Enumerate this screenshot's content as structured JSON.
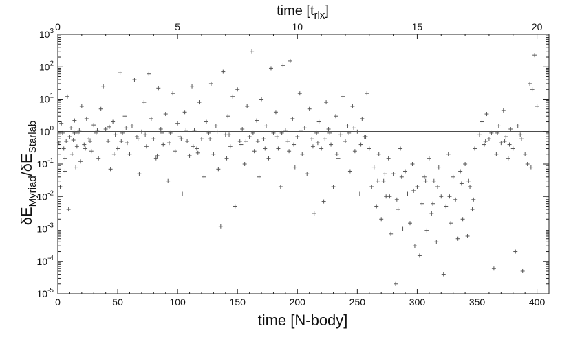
{
  "chart_data": {
    "type": "scatter",
    "xlabel": "time [N-body]",
    "x2label_main": "time [t",
    "x2label_sub": "rlx",
    "x2label_end": "]",
    "ylabel_parts": {
      "main1": "δE",
      "sub1": "Myriad",
      "main2": "/δE",
      "sub2": "Starlab"
    },
    "xlim": [
      0,
      410
    ],
    "x2lim": [
      0,
      20.5
    ],
    "ylim_exp": [
      -5,
      3
    ],
    "log_y": true,
    "grid": false,
    "x_ticks": [
      "0",
      "50",
      "100",
      "150",
      "200",
      "250",
      "300",
      "350",
      "400"
    ],
    "x2_ticks": [
      "0",
      "5",
      "10",
      "15",
      "20"
    ],
    "y_tick_base": "10",
    "y_tick_exponents": [
      "-5",
      "-4",
      "-3",
      "-2",
      "-1",
      "0",
      "1",
      "2",
      "3"
    ],
    "reference_line_y": 1,
    "marker": "+",
    "series": [
      {
        "points": [
          [
            1,
            0.45
          ],
          [
            2,
            0.02
          ],
          [
            3,
            1.8
          ],
          [
            4,
            0.9
          ],
          [
            5,
            0.3
          ],
          [
            6,
            0.06
          ],
          [
            7,
            0.5
          ],
          [
            8,
            12
          ],
          [
            9,
            0.004
          ],
          [
            10,
            0.7
          ],
          [
            11,
            1.3
          ],
          [
            12,
            0.2
          ],
          [
            13,
            0.55
          ],
          [
            14,
            2.2
          ],
          [
            15,
            0.08
          ],
          [
            16,
            0.35
          ],
          [
            17,
            0.9
          ],
          [
            18,
            1.1
          ],
          [
            19,
            0.12
          ],
          [
            20,
            6
          ],
          [
            22,
            0.4
          ],
          [
            24,
            2.5
          ],
          [
            26,
            0.6
          ],
          [
            28,
            0.25
          ],
          [
            30,
            1.6
          ],
          [
            32,
            0.9
          ],
          [
            34,
            0.15
          ],
          [
            36,
            5
          ],
          [
            38,
            25
          ],
          [
            40,
            1.2
          ],
          [
            42,
            0.5
          ],
          [
            44,
            0.07
          ],
          [
            46,
            2
          ],
          [
            48,
            0.8
          ],
          [
            50,
            0.3
          ],
          [
            52,
            65
          ],
          [
            54,
            0.9
          ],
          [
            56,
            3
          ],
          [
            58,
            0.45
          ],
          [
            60,
            0.2
          ],
          [
            62,
            1.5
          ],
          [
            64,
            40
          ],
          [
            66,
            0.7
          ],
          [
            68,
            0.05
          ],
          [
            70,
            1
          ],
          [
            72,
            8
          ],
          [
            74,
            0.35
          ],
          [
            76,
            60
          ],
          [
            78,
            2.5
          ],
          [
            80,
            0.6
          ],
          [
            82,
            0.15
          ],
          [
            84,
            22
          ],
          [
            86,
            1.2
          ],
          [
            88,
            0.4
          ],
          [
            90,
            3.5
          ],
          [
            92,
            0.03
          ],
          [
            94,
            0.9
          ],
          [
            96,
            15
          ],
          [
            98,
            0.25
          ],
          [
            100,
            1.8
          ],
          [
            102,
            0.7
          ],
          [
            104,
            0.012
          ],
          [
            106,
            4
          ],
          [
            108,
            0.5
          ],
          [
            110,
            0.18
          ],
          [
            112,
            25
          ],
          [
            114,
            1.1
          ],
          [
            116,
            0.3
          ],
          [
            118,
            8
          ],
          [
            120,
            0.6
          ],
          [
            122,
            0.04
          ],
          [
            124,
            2
          ],
          [
            126,
            0.9
          ],
          [
            128,
            30
          ],
          [
            130,
            0.2
          ],
          [
            132,
            1.5
          ],
          [
            134,
            0.07
          ],
          [
            136,
            0.0012
          ],
          [
            138,
            70
          ],
          [
            140,
            0.8
          ],
          [
            142,
            3
          ],
          [
            144,
            0.35
          ],
          [
            146,
            12
          ],
          [
            148,
            0.005
          ],
          [
            150,
            20
          ],
          [
            152,
            0.5
          ],
          [
            154,
            1.2
          ],
          [
            156,
            0.1
          ],
          [
            158,
            6
          ],
          [
            160,
            0.7
          ],
          [
            162,
            300
          ],
          [
            164,
            0.25
          ],
          [
            166,
            2.2
          ],
          [
            168,
            0.04
          ],
          [
            170,
            10
          ],
          [
            172,
            0.6
          ],
          [
            174,
            1.5
          ],
          [
            176,
            0.15
          ],
          [
            178,
            90
          ],
          [
            180,
            0.9
          ],
          [
            182,
            4
          ],
          [
            184,
            0.3
          ],
          [
            186,
            0.02
          ],
          [
            188,
            110
          ],
          [
            190,
            1.1
          ],
          [
            192,
            0.5
          ],
          [
            194,
            150
          ],
          [
            196,
            2.5
          ],
          [
            198,
            0.08
          ],
          [
            200,
            0.7
          ],
          [
            202,
            15
          ],
          [
            204,
            0.2
          ],
          [
            206,
            1.3
          ],
          [
            208,
            0.05
          ],
          [
            210,
            5
          ],
          [
            212,
            0.6
          ],
          [
            214,
            0.003
          ],
          [
            216,
            0.9
          ],
          [
            218,
            2
          ],
          [
            220,
            0.3
          ],
          [
            222,
            0.007
          ],
          [
            224,
            8
          ],
          [
            226,
            1.2
          ],
          [
            228,
            0.4
          ],
          [
            230,
            0.02
          ],
          [
            232,
            3
          ],
          [
            234,
            0.15
          ],
          [
            236,
            0.8
          ],
          [
            238,
            12
          ],
          [
            240,
            0.5
          ],
          [
            242,
            1.5
          ],
          [
            244,
            0.06
          ],
          [
            246,
            6
          ],
          [
            248,
            0.25
          ],
          [
            250,
            1
          ],
          [
            252,
            0.012
          ],
          [
            254,
            2.5
          ],
          [
            256,
            0.7
          ],
          [
            258,
            15
          ],
          [
            260,
            0.3
          ],
          [
            262,
            0.02
          ],
          [
            264,
            0.08
          ],
          [
            266,
            0.005
          ],
          [
            268,
            0.2
          ],
          [
            270,
            0.002
          ],
          [
            272,
            0.03
          ],
          [
            274,
            0.01
          ],
          [
            276,
            0.15
          ],
          [
            278,
            0.0007
          ],
          [
            280,
            0.05
          ],
          [
            282,
            2e-05
          ],
          [
            284,
            0.004
          ],
          [
            286,
            0.3
          ],
          [
            288,
            0.001
          ],
          [
            290,
            0.06
          ],
          [
            292,
            0.012
          ],
          [
            294,
            0.0015
          ],
          [
            296,
            0.1
          ],
          [
            298,
            0.0003
          ],
          [
            300,
            0.02
          ],
          [
            302,
            0.00015
          ],
          [
            304,
            0.006
          ],
          [
            306,
            0.04
          ],
          [
            308,
            0.0009
          ],
          [
            310,
            0.15
          ],
          [
            312,
            0.003
          ],
          [
            314,
            0.03
          ],
          [
            316,
            0.0004
          ],
          [
            318,
            0.08
          ],
          [
            320,
            0.01
          ],
          [
            322,
            4e-05
          ],
          [
            324,
            0.005
          ],
          [
            326,
            0.2
          ],
          [
            328,
            0.0015
          ],
          [
            330,
            0.04
          ],
          [
            332,
            0.008
          ],
          [
            334,
            0.0005
          ],
          [
            336,
            0.06
          ],
          [
            338,
            0.002
          ],
          [
            340,
            0.1
          ],
          [
            342,
            0.0006
          ],
          [
            344,
            0.02
          ],
          [
            346,
            0.004
          ],
          [
            348,
            0.3
          ],
          [
            350,
            0.001
          ],
          [
            352,
            0.8
          ],
          [
            354,
            2
          ],
          [
            356,
            0.4
          ],
          [
            358,
            3.5
          ],
          [
            360,
            0.6
          ],
          [
            362,
            0.9
          ],
          [
            364,
            6e-05
          ],
          [
            366,
            0.2
          ],
          [
            368,
            1.5
          ],
          [
            370,
            0.45
          ],
          [
            372,
            4.5
          ],
          [
            374,
            0.7
          ],
          [
            376,
            0.15
          ],
          [
            378,
            1.2
          ],
          [
            380,
            0.3
          ],
          [
            382,
            0.0002
          ],
          [
            384,
            1.5
          ],
          [
            386,
            0.8
          ],
          [
            388,
            5e-05
          ],
          [
            390,
            0.2
          ],
          [
            392,
            0.1
          ],
          [
            394,
            30
          ],
          [
            396,
            20
          ],
          [
            398,
            230
          ],
          [
            400,
            6
          ],
          [
            6,
            0.15
          ],
          [
            14,
            0.9
          ],
          [
            27,
            0.5
          ],
          [
            33,
            1.1
          ],
          [
            47,
            0.2
          ],
          [
            57,
            1.3
          ],
          [
            67,
            0.6
          ],
          [
            83,
            0.18
          ],
          [
            93,
            0.45
          ],
          [
            107,
            1.1
          ],
          [
            117,
            0.22
          ],
          [
            127,
            0.6
          ],
          [
            141,
            0.15
          ],
          [
            153,
            0.4
          ],
          [
            163,
            0.9
          ],
          [
            173,
            0.3
          ],
          [
            183,
            0.7
          ],
          [
            193,
            0.25
          ],
          [
            203,
            1.1
          ],
          [
            213,
            0.35
          ],
          [
            223,
            0.6
          ],
          [
            233,
            0.2
          ],
          [
            243,
            0.9
          ],
          [
            253,
            0.4
          ],
          [
            267,
            0.03
          ],
          [
            277,
            0.01
          ],
          [
            287,
            0.04
          ],
          [
            297,
            0.015
          ],
          [
            307,
            0.03
          ],
          [
            317,
            0.02
          ],
          [
            327,
            0.01
          ],
          [
            337,
            0.025
          ],
          [
            347,
            0.008
          ],
          [
            357,
            0.5
          ],
          [
            367,
            0.9
          ],
          [
            377,
            0.4
          ],
          [
            387,
            0.6
          ],
          [
            395,
            0.08
          ],
          [
            23,
            0.3
          ],
          [
            53,
            0.5
          ],
          [
            87,
            0.9
          ],
          [
            113,
            0.35
          ],
          [
            143,
            0.8
          ],
          [
            167,
            0.5
          ],
          [
            197,
            0.4
          ],
          [
            227,
            0.9
          ],
          [
            257,
            0.7
          ],
          [
            283,
            0.008
          ],
          [
            313,
            0.006
          ],
          [
            343,
            0.03
          ],
          [
            373,
            0.5
          ],
          [
            43,
            1.4
          ],
          [
            73,
            0.8
          ],
          [
            103,
            0.6
          ],
          [
            133,
            1
          ],
          [
            157,
            0.5
          ],
          [
            187,
            0.9
          ],
          [
            217,
            0.45
          ],
          [
            247,
            1.3
          ],
          [
            273,
            0.05
          ]
        ]
      }
    ]
  }
}
